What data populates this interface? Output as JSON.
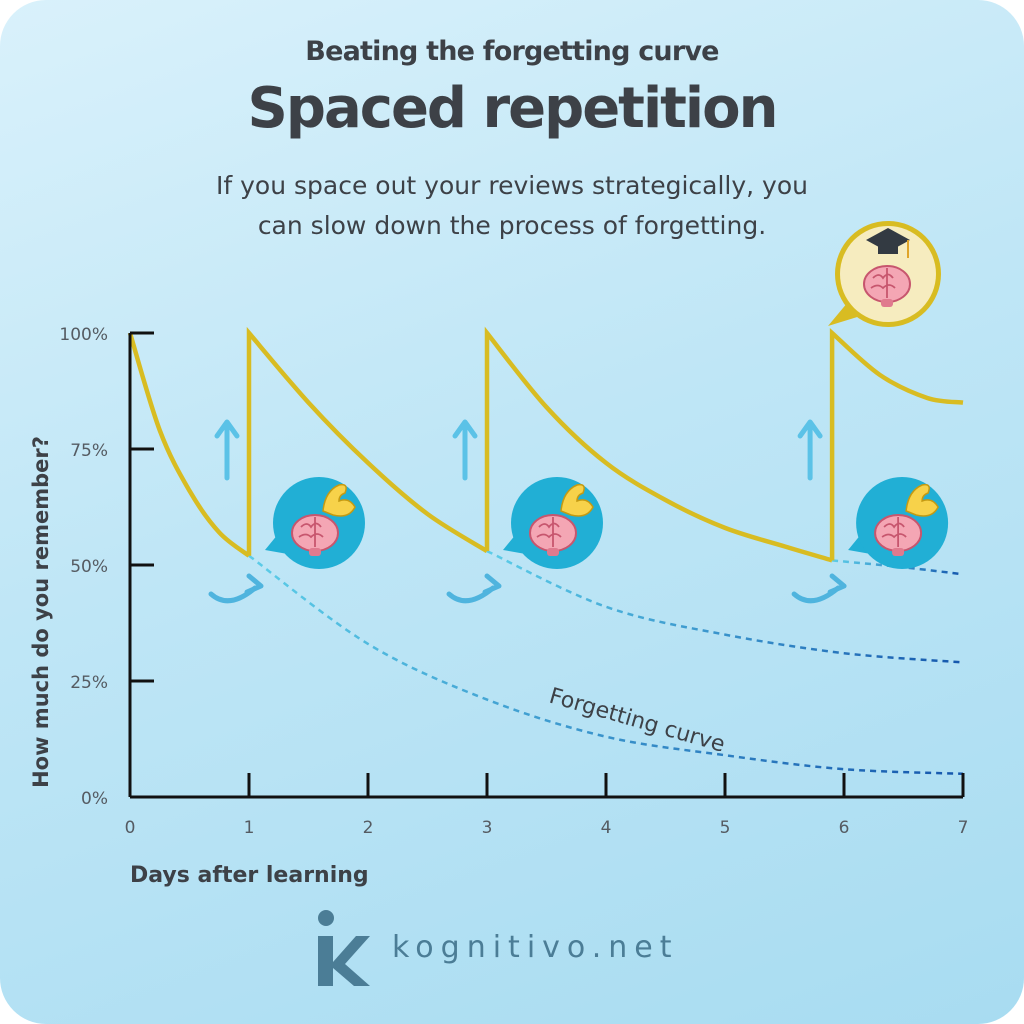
{
  "header": {
    "kicker": "Beating the forgetting curve",
    "title": "Spaced repetition",
    "subtitle": "If you space out your reviews strategically, you can slow down the process of forgetting."
  },
  "chart_data": {
    "type": "line",
    "title": "Spaced repetition",
    "xlabel": "Days after learning",
    "ylabel": "How much do you remember?",
    "xlim": [
      0,
      7
    ],
    "ylim": [
      0,
      100
    ],
    "x_ticks": [
      0,
      1,
      2,
      3,
      4,
      5,
      6,
      7
    ],
    "x_tick_labels": [
      "0",
      "1",
      "2",
      "3",
      "4",
      "5",
      "6",
      "7"
    ],
    "y_ticks": [
      0,
      25,
      50,
      75,
      100
    ],
    "y_tick_labels": [
      "0%",
      "25%",
      "50%",
      "75%",
      "100%"
    ],
    "reviews": [
      1,
      3,
      6
    ],
    "series": [
      {
        "name": "",
        "style": "solid",
        "color": "#d8bc22",
        "segments": [
          {
            "x": [
              0,
              0.25,
              0.5,
              0.75,
              1.0
            ],
            "y": [
              100,
              79,
              66,
              57,
              52
            ]
          },
          {
            "x": [
              1.0,
              1.0,
              1.5,
              2.0,
              2.5,
              3.0
            ],
            "y": [
              52,
              100,
              85,
              72,
              61,
              53
            ]
          },
          {
            "x": [
              3.0,
              3.0,
              3.5,
              4.0,
              4.5,
              5.0,
              5.5,
              5.9
            ],
            "y": [
              53,
              100,
              84,
              72,
              64,
              58,
              54,
              51
            ]
          },
          {
            "x": [
              5.9,
              5.9,
              6.3,
              6.7,
              7.0
            ],
            "y": [
              51,
              100,
              91,
              86,
              85
            ]
          }
        ]
      },
      {
        "name": "Forgetting curve",
        "style": "dashed",
        "color": "#2a86c9",
        "x": [
          1.0,
          2.0,
          3.0,
          4.0,
          5.0,
          6.0,
          7.0
        ],
        "y": [
          52,
          33,
          21,
          13,
          9,
          6,
          5
        ]
      },
      {
        "name": "",
        "style": "dashed",
        "color": "#2a86c9",
        "x": [
          3.0,
          4.0,
          5.0,
          6.0,
          7.0
        ],
        "y": [
          53,
          41,
          35,
          31,
          29
        ]
      },
      {
        "name": "",
        "style": "dashed",
        "color": "#2a86c9",
        "x": [
          5.9,
          6.5,
          7.0
        ],
        "y": [
          51,
          49.5,
          48
        ]
      }
    ],
    "annotations": [
      "Forgetting curve"
    ],
    "legend": "none",
    "grid": false
  },
  "icons": {
    "review_bubble": "brain-flexing-icon",
    "goal_bubble": "brain-graduation-cap-icon",
    "up_arrow": "up-arrow-icon",
    "curved_arrow": "curved-arrow-icon"
  },
  "colors": {
    "retention": "#d8bc22",
    "forgetting": "#2a86c9",
    "bubble_review": "#21afd5",
    "bubble_goal": "#f6ecbf",
    "axis": "#111111",
    "text": "#3d4147"
  },
  "brand": {
    "name": "kognitivo.net",
    "logo_letter": "K"
  }
}
